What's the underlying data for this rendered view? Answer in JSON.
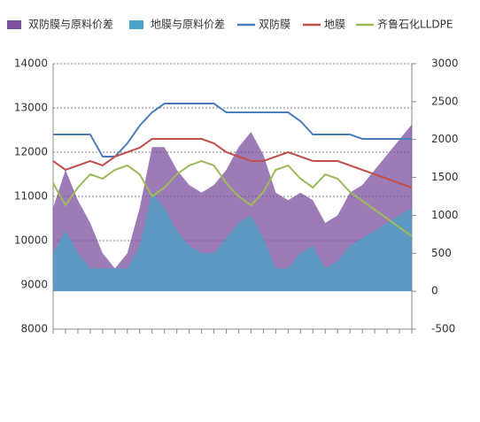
{
  "chart_data": {
    "type": "line",
    "categories": [
      null,
      null,
      null,
      null,
      null,
      null,
      null,
      null,
      null,
      null,
      null,
      null,
      null,
      null,
      null,
      null,
      null,
      null,
      null,
      null,
      null,
      null,
      null,
      null,
      null,
      null,
      null,
      null,
      null,
      null
    ],
    "ylim": [
      8000,
      14000
    ],
    "yticks": [
      8000,
      9000,
      10000,
      11000,
      12000,
      13000,
      14000
    ],
    "y2lim": [
      -500,
      3000
    ],
    "y2ticks": [
      -500,
      0,
      500,
      1000,
      1500,
      2000,
      2500,
      3000
    ],
    "grid": true,
    "legend": "top",
    "series": [
      {
        "name": "双防膜与原料价差",
        "kind": "area",
        "axis": "y2",
        "color": "#7b4f9d",
        "values": [
          1100,
          1600,
          1200,
          900,
          500,
          300,
          500,
          1100,
          1900,
          1900,
          1600,
          1400,
          1300,
          1400,
          1600,
          1900,
          2100,
          1800,
          1300,
          1200,
          1300,
          1200,
          900,
          1000,
          1300,
          1400,
          1600,
          1800,
          2000,
          2200
        ]
      },
      {
        "name": "地膜与原料价差",
        "kind": "area",
        "axis": "y2",
        "color": "#4aa3c8",
        "values": [
          500,
          800,
          500,
          300,
          300,
          300,
          300,
          600,
          1300,
          1100,
          800,
          600,
          500,
          500,
          700,
          900,
          1000,
          700,
          300,
          300,
          500,
          600,
          300,
          400,
          600,
          700,
          800,
          900,
          1000,
          1100
        ]
      },
      {
        "name": "双防膜",
        "kind": "line",
        "color": "#4a7ebb",
        "values": [
          12400,
          12400,
          12400,
          12400,
          11900,
          11900,
          12200,
          12600,
          12900,
          13100,
          13100,
          13100,
          13100,
          13100,
          12900,
          12900,
          12900,
          12900,
          12900,
          12900,
          12700,
          12400,
          12400,
          12400,
          12400,
          12300,
          12300,
          12300,
          12300,
          12300
        ]
      },
      {
        "name": "地膜",
        "kind": "line",
        "color": "#c0504d",
        "values": [
          11800,
          11600,
          11700,
          11800,
          11700,
          11900,
          12000,
          12100,
          12300,
          12300,
          12300,
          12300,
          12300,
          12200,
          12000,
          11900,
          11800,
          11800,
          11900,
          12000,
          11900,
          11800,
          11800,
          11800,
          11700,
          11600,
          11500,
          11400,
          11300,
          11200
        ]
      },
      {
        "name": "齐鲁石化LLDPE",
        "kind": "line",
        "color": "#9bbb59",
        "values": [
          11300,
          10800,
          11200,
          11500,
          11400,
          11600,
          11700,
          11500,
          11000,
          11200,
          11500,
          11700,
          11800,
          11700,
          11300,
          11000,
          10800,
          11100,
          11600,
          11700,
          11400,
          11200,
          11500,
          11400,
          11100,
          10900,
          10700,
          10500,
          10300,
          10100
        ]
      }
    ]
  }
}
